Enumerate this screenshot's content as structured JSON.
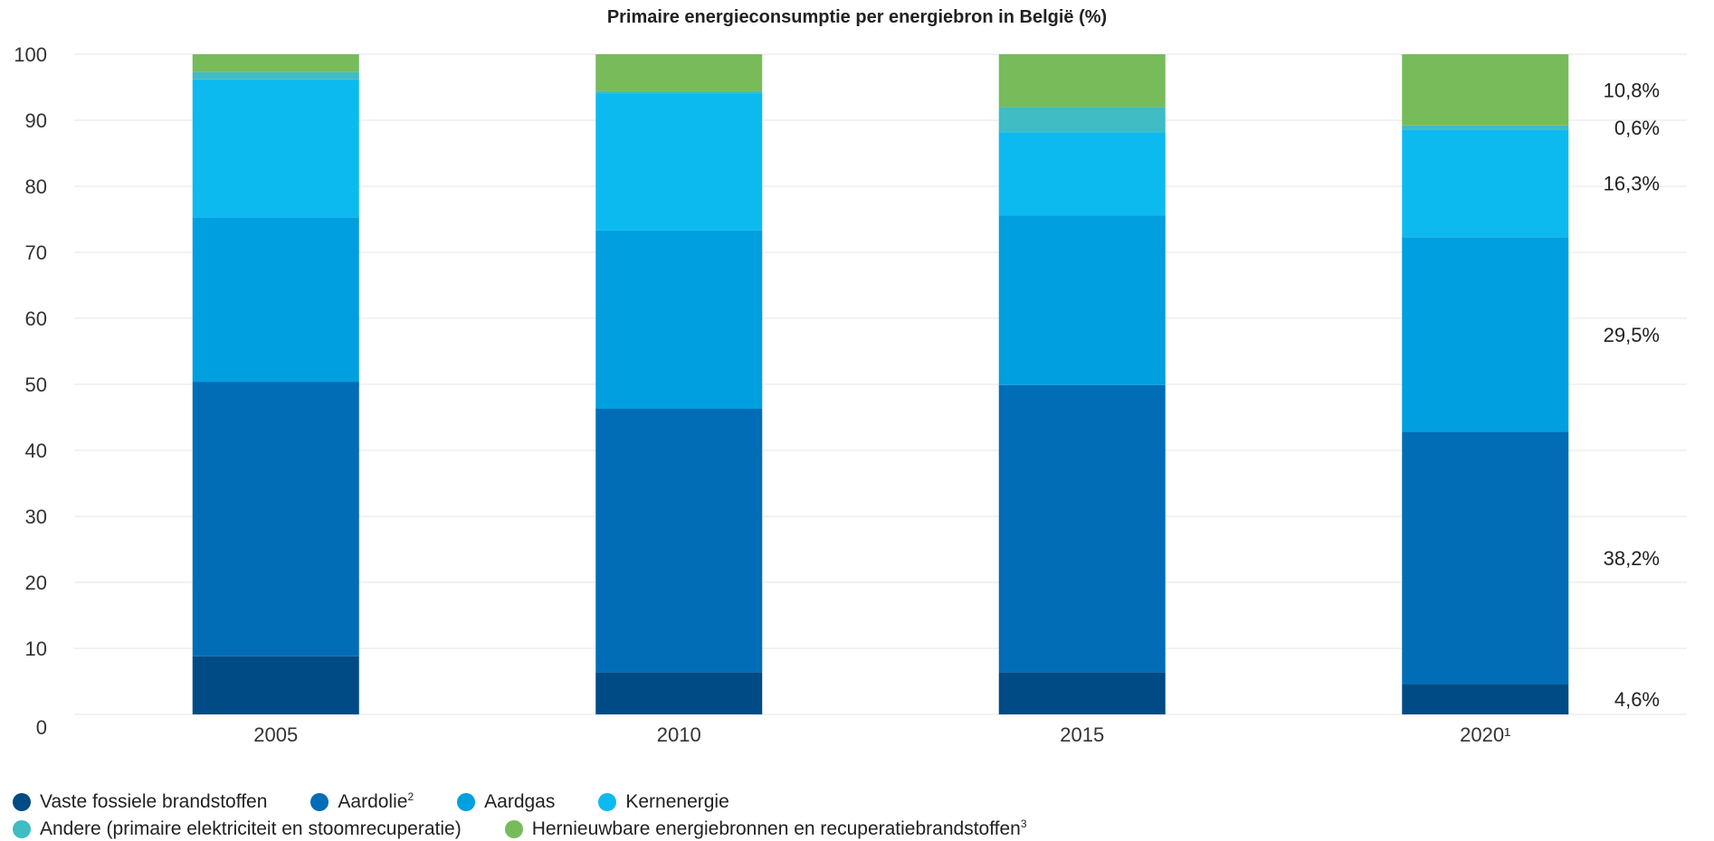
{
  "chart_data": {
    "type": "bar",
    "stacked": true,
    "title": "Primaire energieconsumptie per energiebron in België (%)",
    "categories": [
      "2005",
      "2010",
      "2015",
      "2020¹"
    ],
    "ylim": [
      0,
      100
    ],
    "yticks": [
      0,
      10,
      20,
      30,
      40,
      50,
      60,
      70,
      80,
      90,
      100
    ],
    "grid": true,
    "legend_position": "bottom",
    "series": [
      {
        "name": "Vaste fossiele brandstoffen",
        "color": "#004b85",
        "values": [
          8.8,
          6.4,
          6.4,
          4.6
        ]
      },
      {
        "name": "Aardolie²",
        "color": "#006db6",
        "values": [
          41.6,
          39.9,
          43.5,
          38.2
        ]
      },
      {
        "name": "Aardgas",
        "color": "#009fe0",
        "values": [
          24.9,
          27.0,
          25.7,
          29.5
        ]
      },
      {
        "name": "Kernenergie",
        "color": "#0dbaf0",
        "values": [
          20.9,
          20.8,
          12.6,
          16.3
        ]
      },
      {
        "name": "Andere (primaire elektriciteit en stoomrecuperatie)",
        "color": "#3fbcc4",
        "values": [
          1.1,
          0.3,
          3.8,
          0.6
        ]
      },
      {
        "name": "Hernieuwbare energiebronnen en recuperatiebrandstoffen³",
        "color": "#77bb5b",
        "values": [
          2.7,
          5.6,
          8.0,
          10.8
        ]
      }
    ],
    "data_labels": {
      "category": "2020¹",
      "labels": [
        "4,6%",
        "38,2%",
        "29,5%",
        "16,3%",
        "0,6%",
        "10,8%"
      ]
    }
  },
  "legend": [
    {
      "label": "Vaste fossiele brandstoffen",
      "color": "#004b85"
    },
    {
      "label": "Aardolie",
      "sup": "2",
      "color": "#006db6"
    },
    {
      "label": "Aardgas",
      "color": "#009fe0"
    },
    {
      "label": "Kernenergie",
      "color": "#0dbaf0"
    },
    {
      "label": "Andere (primaire elektriciteit en stoomrecuperatie)",
      "color": "#3fbcc4"
    },
    {
      "label": "Hernieuwbare energiebronnen en recuperatiebrandstoffen",
      "sup": "3",
      "color": "#77bb5b"
    }
  ]
}
